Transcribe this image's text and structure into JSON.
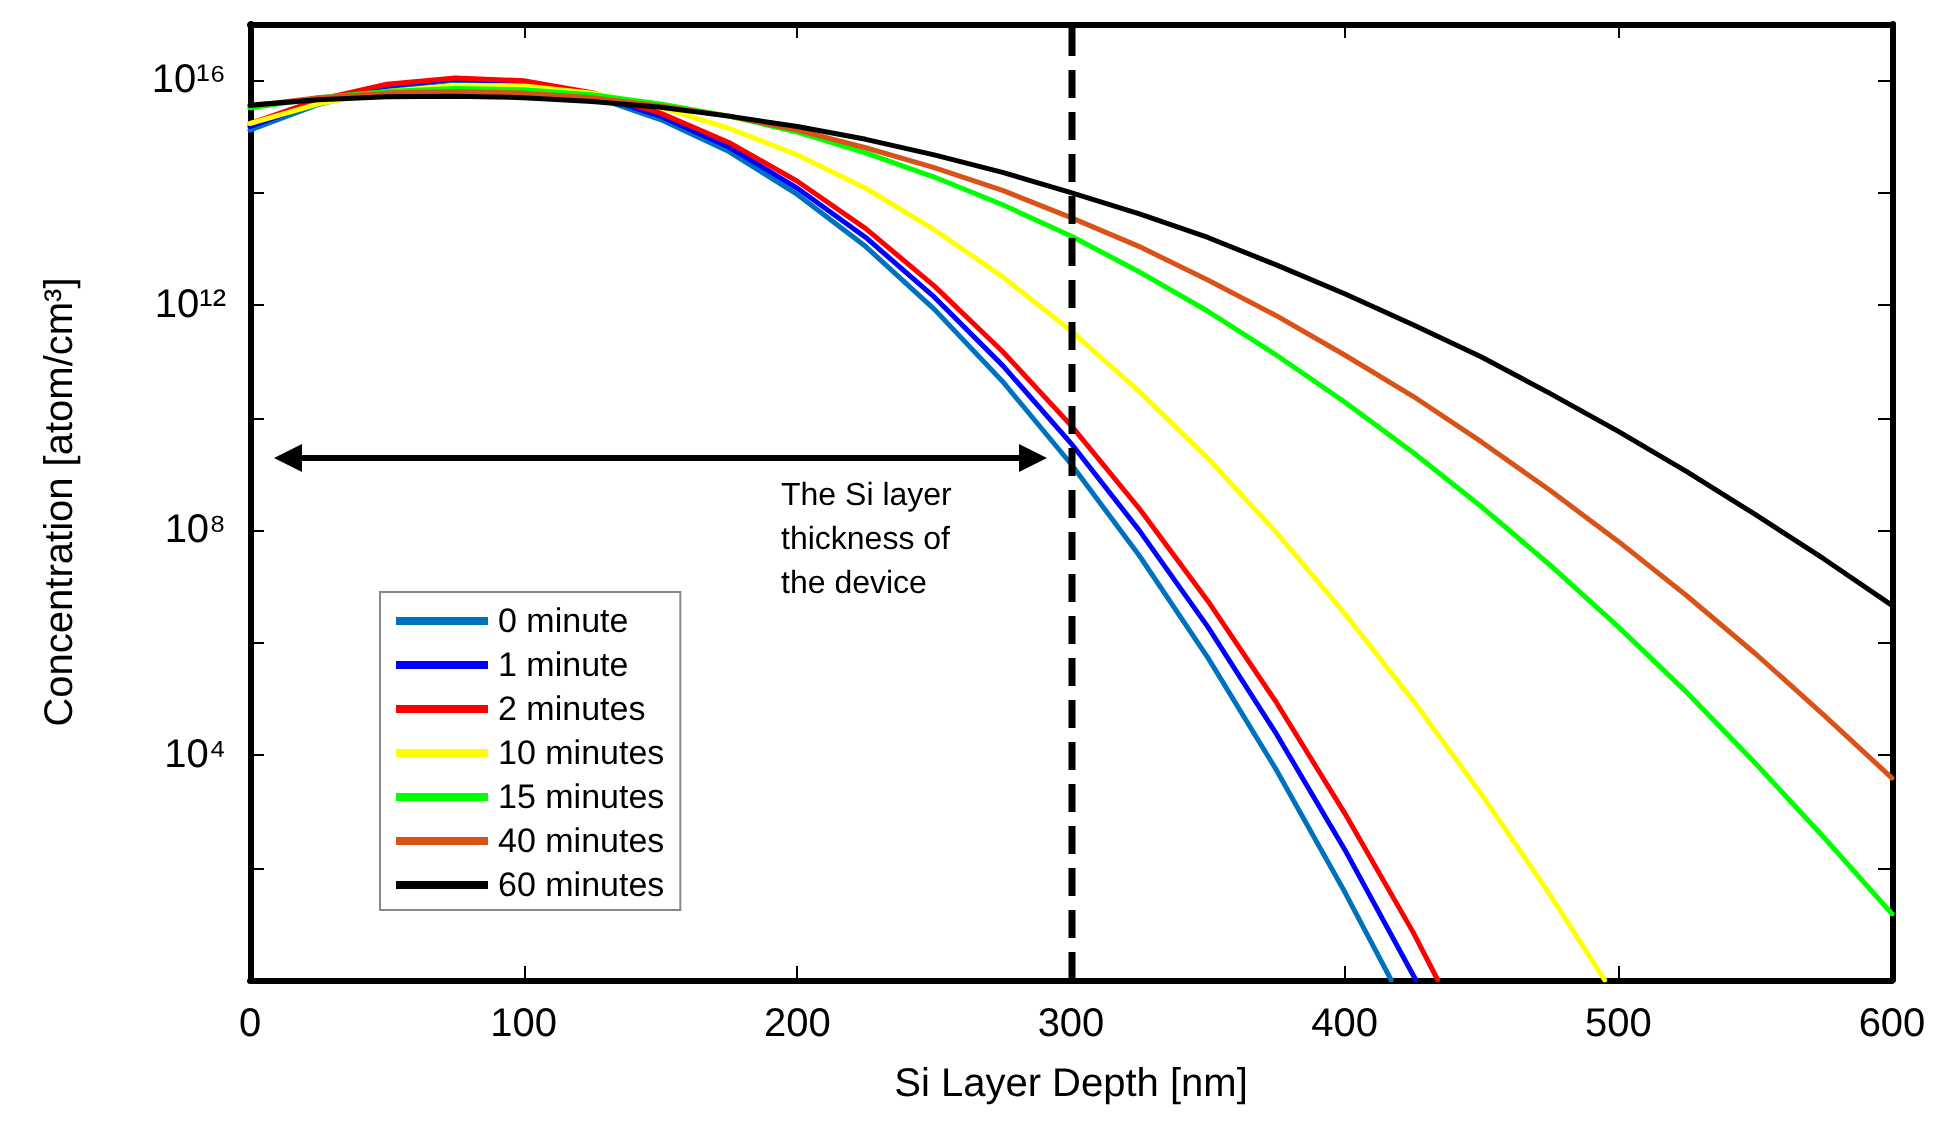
{
  "chart_data": {
    "type": "line",
    "xlabel": "Si Layer Depth [nm]",
    "ylabel": "Concentration [atom/cm³]",
    "xlim": [
      0,
      600
    ],
    "xticks": [
      0,
      100,
      200,
      300,
      400,
      500,
      600
    ],
    "ylim": [
      1,
      1e+17
    ],
    "log": "y",
    "yticks": [
      {
        "value": 100,
        "label": null
      },
      {
        "value": 10000,
        "label": "10⁴"
      },
      {
        "value": 1000000.0,
        "label": null
      },
      {
        "value": 100000000.0,
        "label": "10⁸"
      },
      {
        "value": 10000000000.0,
        "label": null
      },
      {
        "value": 1000000000000.0,
        "label": "10¹²"
      },
      {
        "value": 100000000000000.0,
        "label": null
      },
      {
        "value": 1e+16,
        "label": "10¹⁶"
      }
    ],
    "grid": false,
    "legend": "bottom left",
    "marker": "none",
    "line_style": "solid",
    "series": [
      {
        "name": "0 minute",
        "color": "#0072bd",
        "x": [
          0,
          25,
          50,
          75,
          100,
          125,
          150,
          175,
          200,
          225,
          250,
          275,
          300,
          325,
          350,
          375,
          400,
          417
        ],
        "values": [
          1300000000000000.0,
          3700000000000000.0,
          7500000000000000.0,
          1e+16,
          8800000000000000.0,
          5200000000000000.0,
          2000000000000000.0,
          540000000000000.0,
          93000000000000.0,
          11000000000000.0,
          850000000000.0,
          44000000000.0,
          1500000000.0,
          35000000.0,
          540000.0,
          5500.0,
          37,
          1
        ]
      },
      {
        "name": "1 minute",
        "color": "#0000ff",
        "x": [
          0,
          25,
          50,
          75,
          100,
          125,
          150,
          175,
          200,
          225,
          250,
          275,
          300,
          325,
          350,
          375,
          400,
          426
        ],
        "values": [
          1500000000000000.0,
          4100000000000000.0,
          7900000000000000.0,
          1.05e+16,
          9300000000000000.0,
          5600000000000000.0,
          2300000000000000.0,
          650000000000000.0,
          120000000000000.0,
          16000000000000.0,
          1400000000000.0,
          85000000000.0,
          3500000000.0,
          98000000.0,
          1900000.0,
          24000.0,
          210,
          1
        ]
      },
      {
        "name": "2 minutes",
        "color": "#ff0000",
        "x": [
          0,
          25,
          50,
          75,
          100,
          125,
          150,
          175,
          200,
          225,
          250,
          275,
          300,
          325,
          350,
          375,
          400,
          425,
          434
        ],
        "values": [
          1700000000000000.0,
          4500000000000000.0,
          8500000000000000.0,
          1.1e+16,
          9800000000000000.0,
          6000000000000000.0,
          2600000000000000.0,
          780000000000000.0,
          160000000000000.0,
          23000000000000.0,
          2200000000000.0,
          150000000000.0,
          7300000000.0,
          240000000.0,
          5500000.0,
          87000.0,
          930,
          7.1,
          1
        ]
      },
      {
        "name": "10 minutes",
        "color": "#ffff00",
        "x": [
          0,
          25,
          50,
          75,
          100,
          125,
          150,
          175,
          200,
          225,
          250,
          275,
          300,
          325,
          350,
          375,
          400,
          425,
          450,
          475,
          495
        ],
        "values": [
          1700000000000000.0,
          3800000000000000.0,
          6300000000000000.0,
          8100000000000000.0,
          7900000000000000.0,
          5900000000000000.0,
          3300000000000000.0,
          1400000000000000.0,
          470000000000000.0,
          120000000000000.0,
          22000000000000.0,
          3200000000000.0,
          350000000000.0,
          29000000000.0,
          1900000000.0,
          91000000.0,
          3300000.0,
          93000.0,
          2000,
          33,
          1
        ]
      },
      {
        "name": "15 minutes",
        "color": "#00ff00",
        "x": [
          0,
          25,
          50,
          75,
          100,
          125,
          150,
          175,
          200,
          225,
          250,
          275,
          300,
          325,
          350,
          375,
          400,
          425,
          450,
          475,
          500,
          525,
          550,
          575,
          600
        ],
        "values": [
          3200000000000000.0,
          4900000000000000.0,
          6300000000000000.0,
          7100000000000000.0,
          6800000000000000.0,
          5500000000000000.0,
          3800000000000000.0,
          2300000000000000.0,
          1200000000000000.0,
          510000000000000.0,
          190000000000000.0,
          61000000000000.0,
          17000000000000.0,
          3900000000000.0,
          780000000000.0,
          130000000000.0,
          19000000000.0,
          2400000000.0,
          260000000.0,
          24000000.0,
          1900000.0,
          130000.0,
          7200,
          350,
          15
        ]
      },
      {
        "name": "40 minutes",
        "color": "#d95319",
        "x": [
          0,
          25,
          50,
          75,
          100,
          125,
          150,
          175,
          200,
          225,
          250,
          275,
          300,
          325,
          350,
          375,
          400,
          425,
          450,
          475,
          500,
          525,
          550,
          575,
          600
        ],
        "values": [
          3500000000000000.0,
          4900000000000000.0,
          5900000000000000.0,
          6300000000000000.0,
          5900000000000000.0,
          4900000000000000.0,
          3500000000000000.0,
          2300000000000000.0,
          1300000000000000.0,
          630000000000000.0,
          280000000000000.0,
          110000000000000.0,
          36000000000000.0,
          11000000000000.0,
          2800000000000.0,
          650000000000.0,
          130000000000.0,
          24000000000.0,
          3700000000.0,
          510000000.0,
          63000000.0,
          6800000.0,
          640000.0,
          52000.0,
          3900
        ]
      },
      {
        "name": "60 minutes",
        "color": "#000000",
        "x": [
          0,
          25,
          50,
          75,
          100,
          125,
          150,
          175,
          200,
          225,
          250,
          275,
          300,
          325,
          350,
          375,
          400,
          425,
          450,
          475,
          500,
          525,
          550,
          575,
          600
        ],
        "values": [
          3600000000000000.0,
          4500000000000000.0,
          5100000000000000.0,
          5200000000000000.0,
          4900000000000000.0,
          4200000000000000.0,
          3300000000000000.0,
          2300000000000000.0,
          1500000000000000.0,
          890000000000000.0,
          470000000000000.0,
          230000000000000.0,
          100000000000000.0,
          42000000000000.0,
          16000000000000.0,
          5200000000000.0,
          1600000000000.0,
          450000000000.0,
          120000000000.0,
          27000000000.0,
          5700000000.0,
          1100000000.0,
          190000000.0,
          31000000.0,
          4600000.0
        ]
      }
    ],
    "ref_lines": [
      {
        "axis": "x",
        "value": 300,
        "color": "#000000",
        "line_style": "dashed"
      }
    ],
    "annotations": [
      "The Si layer thickness of the device"
    ]
  }
}
